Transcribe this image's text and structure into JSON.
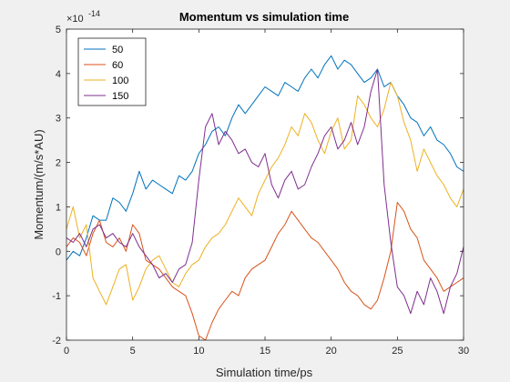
{
  "chart_data": {
    "type": "line",
    "title": "Momentum vs simulation time",
    "xlabel": "Simulation time/ps",
    "ylabel": "Momentum/(m/s*AU)",
    "exponent_label": "×10",
    "exponent_power": "-14",
    "xlim": [
      0,
      30
    ],
    "ylim": [
      -2,
      5
    ],
    "xticks": [
      "0",
      "5",
      "10",
      "15",
      "20",
      "25",
      "30"
    ],
    "yticks": [
      "-2",
      "-1",
      "0",
      "1",
      "2",
      "3",
      "4",
      "5"
    ],
    "xtick_values": [
      0,
      5,
      10,
      15,
      20,
      25,
      30
    ],
    "ytick_values": [
      -2,
      -1,
      0,
      1,
      2,
      3,
      4,
      5
    ],
    "grid": false,
    "legend_position": "top-left",
    "series": [
      {
        "name": "50",
        "color": "#0072BD",
        "x": [
          0,
          0.5,
          1,
          1.5,
          2,
          2.5,
          3,
          3.5,
          4,
          4.5,
          5,
          5.5,
          6,
          6.5,
          7,
          7.5,
          8,
          8.5,
          9,
          9.5,
          10,
          10.5,
          11,
          11.5,
          12,
          12.5,
          13,
          13.5,
          14,
          14.5,
          15,
          15.5,
          16,
          16.5,
          17,
          17.5,
          18,
          18.5,
          19,
          19.5,
          20,
          20.5,
          21,
          21.5,
          22,
          22.5,
          23,
          23.5,
          24,
          24.5,
          25,
          25.5,
          26,
          26.5,
          27,
          27.5,
          28,
          28.5,
          29,
          29.5,
          30
        ],
        "y": [
          -0.2,
          0.0,
          -0.1,
          0.3,
          0.8,
          0.7,
          0.7,
          1.2,
          1.1,
          0.9,
          1.3,
          1.8,
          1.4,
          1.6,
          1.5,
          1.4,
          1.3,
          1.7,
          1.6,
          1.8,
          2.2,
          2.4,
          2.7,
          2.8,
          2.6,
          3.0,
          3.3,
          3.1,
          3.3,
          3.5,
          3.7,
          3.6,
          3.5,
          3.8,
          3.7,
          3.6,
          3.9,
          4.1,
          3.9,
          4.2,
          4.4,
          4.1,
          4.3,
          4.2,
          4.0,
          3.8,
          3.9,
          4.1,
          3.7,
          3.8,
          3.5,
          3.3,
          3.0,
          2.9,
          2.6,
          2.8,
          2.5,
          2.4,
          2.2,
          1.9,
          1.8
        ]
      },
      {
        "name": "60",
        "color": "#D95319",
        "x": [
          0,
          0.5,
          1,
          1.5,
          2,
          2.5,
          3,
          3.5,
          4,
          4.5,
          5,
          5.5,
          6,
          6.5,
          7,
          7.5,
          8,
          8.5,
          9,
          9.5,
          10,
          10.5,
          11,
          11.5,
          12,
          12.5,
          13,
          13.5,
          14,
          14.5,
          15,
          15.5,
          16,
          16.5,
          17,
          17.5,
          18,
          18.5,
          19,
          19.5,
          20,
          20.5,
          21,
          21.5,
          22,
          22.5,
          23,
          23.5,
          24,
          24.5,
          25,
          25.5,
          26,
          26.5,
          27,
          27.5,
          28,
          28.5,
          29,
          29.5,
          30
        ],
        "y": [
          0.1,
          0.3,
          0.2,
          -0.1,
          0.4,
          0.7,
          0.2,
          0.1,
          0.3,
          0.0,
          0.6,
          0.4,
          -0.2,
          -0.3,
          -0.4,
          -0.6,
          -0.8,
          -0.9,
          -1.0,
          -1.4,
          -1.9,
          -2.0,
          -1.6,
          -1.3,
          -1.1,
          -0.9,
          -1.0,
          -0.6,
          -0.4,
          -0.3,
          -0.2,
          0.1,
          0.4,
          0.6,
          0.9,
          0.7,
          0.5,
          0.3,
          0.2,
          0.0,
          -0.2,
          -0.4,
          -0.7,
          -0.9,
          -1.0,
          -1.2,
          -1.3,
          -1.1,
          -0.6,
          0.0,
          1.1,
          0.9,
          0.5,
          0.3,
          -0.2,
          -0.4,
          -0.6,
          -0.9,
          -0.8,
          -0.7,
          -0.6
        ]
      },
      {
        "name": "100",
        "color": "#EDB120",
        "x": [
          0,
          0.5,
          1,
          1.5,
          2,
          2.5,
          3,
          3.5,
          4,
          4.5,
          5,
          5.5,
          6,
          6.5,
          7,
          7.5,
          8,
          8.5,
          9,
          9.5,
          10,
          10.5,
          11,
          11.5,
          12,
          12.5,
          13,
          13.5,
          14,
          14.5,
          15,
          15.5,
          16,
          16.5,
          17,
          17.5,
          18,
          18.5,
          19,
          19.5,
          20,
          20.5,
          21,
          21.5,
          22,
          22.5,
          23,
          23.5,
          24,
          24.5,
          25,
          25.5,
          26,
          26.5,
          27,
          27.5,
          28,
          28.5,
          29,
          29.5,
          30
        ],
        "y": [
          0.5,
          1.0,
          0.3,
          0.6,
          -0.6,
          -0.9,
          -1.2,
          -0.8,
          -0.4,
          -0.3,
          -1.1,
          -0.8,
          -0.4,
          -0.2,
          -0.1,
          -0.4,
          -0.7,
          -0.8,
          -0.5,
          -0.3,
          -0.2,
          0.1,
          0.3,
          0.4,
          0.6,
          0.9,
          1.2,
          1.0,
          0.8,
          1.3,
          1.6,
          1.9,
          2.1,
          2.4,
          2.8,
          2.6,
          3.1,
          2.9,
          2.5,
          2.2,
          2.7,
          3.0,
          2.3,
          2.5,
          3.5,
          3.3,
          3.0,
          2.8,
          3.2,
          3.8,
          3.5,
          2.9,
          2.5,
          1.8,
          2.3,
          2.0,
          1.7,
          1.5,
          1.2,
          1.0,
          1.4
        ]
      },
      {
        "name": "150",
        "color": "#7E2F8E",
        "x": [
          0,
          0.5,
          1,
          1.5,
          2,
          2.5,
          3,
          3.5,
          4,
          4.5,
          5,
          5.5,
          6,
          6.5,
          7,
          7.5,
          8,
          8.5,
          9,
          9.5,
          10,
          10.5,
          11,
          11.5,
          12,
          12.5,
          13,
          13.5,
          14,
          14.5,
          15,
          15.5,
          16,
          16.5,
          17,
          17.5,
          18,
          18.5,
          19,
          19.5,
          20,
          20.5,
          21,
          21.5,
          22,
          22.5,
          23,
          23.5,
          24,
          24.5,
          25,
          25.5,
          26,
          26.5,
          27,
          27.5,
          28,
          28.5,
          29,
          29.5,
          30
        ],
        "y": [
          0.3,
          0.2,
          0.4,
          0.1,
          0.5,
          0.6,
          0.3,
          0.4,
          0.2,
          0.1,
          0.4,
          0.1,
          -0.1,
          -0.3,
          -0.6,
          -0.5,
          -0.7,
          -0.4,
          -0.3,
          0.2,
          1.6,
          2.8,
          3.1,
          2.4,
          2.7,
          2.5,
          2.2,
          2.3,
          2.0,
          1.9,
          2.2,
          1.5,
          1.2,
          1.6,
          1.8,
          1.4,
          1.5,
          1.9,
          2.2,
          2.6,
          2.8,
          2.3,
          2.5,
          2.9,
          2.4,
          2.8,
          3.6,
          4.1,
          1.5,
          0.2,
          -0.8,
          -1.0,
          -1.4,
          -0.9,
          -1.2,
          -0.6,
          -0.9,
          -1.4,
          -0.8,
          -0.5,
          0.1
        ]
      }
    ]
  }
}
